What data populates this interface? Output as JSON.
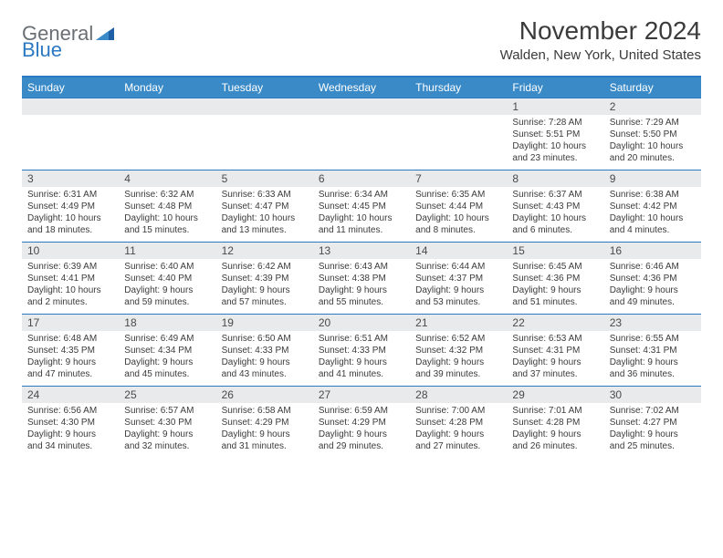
{
  "logo": {
    "text_gray": "General",
    "text_blue": "Blue"
  },
  "header": {
    "month": "November 2024",
    "location": "Walden, New York, United States"
  },
  "colors": {
    "accent": "#3a8ac8",
    "accent_border": "#2b79c2",
    "daynum_bg": "#e9eaeb",
    "text": "#3b3b3b"
  },
  "day_names": [
    "Sunday",
    "Monday",
    "Tuesday",
    "Wednesday",
    "Thursday",
    "Friday",
    "Saturday"
  ],
  "weeks": [
    [
      {
        "n": "",
        "sunrise": "",
        "sunset": "",
        "daylight": ""
      },
      {
        "n": "",
        "sunrise": "",
        "sunset": "",
        "daylight": ""
      },
      {
        "n": "",
        "sunrise": "",
        "sunset": "",
        "daylight": ""
      },
      {
        "n": "",
        "sunrise": "",
        "sunset": "",
        "daylight": ""
      },
      {
        "n": "",
        "sunrise": "",
        "sunset": "",
        "daylight": ""
      },
      {
        "n": "1",
        "sunrise": "Sunrise: 7:28 AM",
        "sunset": "Sunset: 5:51 PM",
        "daylight": "Daylight: 10 hours and 23 minutes."
      },
      {
        "n": "2",
        "sunrise": "Sunrise: 7:29 AM",
        "sunset": "Sunset: 5:50 PM",
        "daylight": "Daylight: 10 hours and 20 minutes."
      }
    ],
    [
      {
        "n": "3",
        "sunrise": "Sunrise: 6:31 AM",
        "sunset": "Sunset: 4:49 PM",
        "daylight": "Daylight: 10 hours and 18 minutes."
      },
      {
        "n": "4",
        "sunrise": "Sunrise: 6:32 AM",
        "sunset": "Sunset: 4:48 PM",
        "daylight": "Daylight: 10 hours and 15 minutes."
      },
      {
        "n": "5",
        "sunrise": "Sunrise: 6:33 AM",
        "sunset": "Sunset: 4:47 PM",
        "daylight": "Daylight: 10 hours and 13 minutes."
      },
      {
        "n": "6",
        "sunrise": "Sunrise: 6:34 AM",
        "sunset": "Sunset: 4:45 PM",
        "daylight": "Daylight: 10 hours and 11 minutes."
      },
      {
        "n": "7",
        "sunrise": "Sunrise: 6:35 AM",
        "sunset": "Sunset: 4:44 PM",
        "daylight": "Daylight: 10 hours and 8 minutes."
      },
      {
        "n": "8",
        "sunrise": "Sunrise: 6:37 AM",
        "sunset": "Sunset: 4:43 PM",
        "daylight": "Daylight: 10 hours and 6 minutes."
      },
      {
        "n": "9",
        "sunrise": "Sunrise: 6:38 AM",
        "sunset": "Sunset: 4:42 PM",
        "daylight": "Daylight: 10 hours and 4 minutes."
      }
    ],
    [
      {
        "n": "10",
        "sunrise": "Sunrise: 6:39 AM",
        "sunset": "Sunset: 4:41 PM",
        "daylight": "Daylight: 10 hours and 2 minutes."
      },
      {
        "n": "11",
        "sunrise": "Sunrise: 6:40 AM",
        "sunset": "Sunset: 4:40 PM",
        "daylight": "Daylight: 9 hours and 59 minutes."
      },
      {
        "n": "12",
        "sunrise": "Sunrise: 6:42 AM",
        "sunset": "Sunset: 4:39 PM",
        "daylight": "Daylight: 9 hours and 57 minutes."
      },
      {
        "n": "13",
        "sunrise": "Sunrise: 6:43 AM",
        "sunset": "Sunset: 4:38 PM",
        "daylight": "Daylight: 9 hours and 55 minutes."
      },
      {
        "n": "14",
        "sunrise": "Sunrise: 6:44 AM",
        "sunset": "Sunset: 4:37 PM",
        "daylight": "Daylight: 9 hours and 53 minutes."
      },
      {
        "n": "15",
        "sunrise": "Sunrise: 6:45 AM",
        "sunset": "Sunset: 4:36 PM",
        "daylight": "Daylight: 9 hours and 51 minutes."
      },
      {
        "n": "16",
        "sunrise": "Sunrise: 6:46 AM",
        "sunset": "Sunset: 4:36 PM",
        "daylight": "Daylight: 9 hours and 49 minutes."
      }
    ],
    [
      {
        "n": "17",
        "sunrise": "Sunrise: 6:48 AM",
        "sunset": "Sunset: 4:35 PM",
        "daylight": "Daylight: 9 hours and 47 minutes."
      },
      {
        "n": "18",
        "sunrise": "Sunrise: 6:49 AM",
        "sunset": "Sunset: 4:34 PM",
        "daylight": "Daylight: 9 hours and 45 minutes."
      },
      {
        "n": "19",
        "sunrise": "Sunrise: 6:50 AM",
        "sunset": "Sunset: 4:33 PM",
        "daylight": "Daylight: 9 hours and 43 minutes."
      },
      {
        "n": "20",
        "sunrise": "Sunrise: 6:51 AM",
        "sunset": "Sunset: 4:33 PM",
        "daylight": "Daylight: 9 hours and 41 minutes."
      },
      {
        "n": "21",
        "sunrise": "Sunrise: 6:52 AM",
        "sunset": "Sunset: 4:32 PM",
        "daylight": "Daylight: 9 hours and 39 minutes."
      },
      {
        "n": "22",
        "sunrise": "Sunrise: 6:53 AM",
        "sunset": "Sunset: 4:31 PM",
        "daylight": "Daylight: 9 hours and 37 minutes."
      },
      {
        "n": "23",
        "sunrise": "Sunrise: 6:55 AM",
        "sunset": "Sunset: 4:31 PM",
        "daylight": "Daylight: 9 hours and 36 minutes."
      }
    ],
    [
      {
        "n": "24",
        "sunrise": "Sunrise: 6:56 AM",
        "sunset": "Sunset: 4:30 PM",
        "daylight": "Daylight: 9 hours and 34 minutes."
      },
      {
        "n": "25",
        "sunrise": "Sunrise: 6:57 AM",
        "sunset": "Sunset: 4:30 PM",
        "daylight": "Daylight: 9 hours and 32 minutes."
      },
      {
        "n": "26",
        "sunrise": "Sunrise: 6:58 AM",
        "sunset": "Sunset: 4:29 PM",
        "daylight": "Daylight: 9 hours and 31 minutes."
      },
      {
        "n": "27",
        "sunrise": "Sunrise: 6:59 AM",
        "sunset": "Sunset: 4:29 PM",
        "daylight": "Daylight: 9 hours and 29 minutes."
      },
      {
        "n": "28",
        "sunrise": "Sunrise: 7:00 AM",
        "sunset": "Sunset: 4:28 PM",
        "daylight": "Daylight: 9 hours and 27 minutes."
      },
      {
        "n": "29",
        "sunrise": "Sunrise: 7:01 AM",
        "sunset": "Sunset: 4:28 PM",
        "daylight": "Daylight: 9 hours and 26 minutes."
      },
      {
        "n": "30",
        "sunrise": "Sunrise: 7:02 AM",
        "sunset": "Sunset: 4:27 PM",
        "daylight": "Daylight: 9 hours and 25 minutes."
      }
    ]
  ]
}
